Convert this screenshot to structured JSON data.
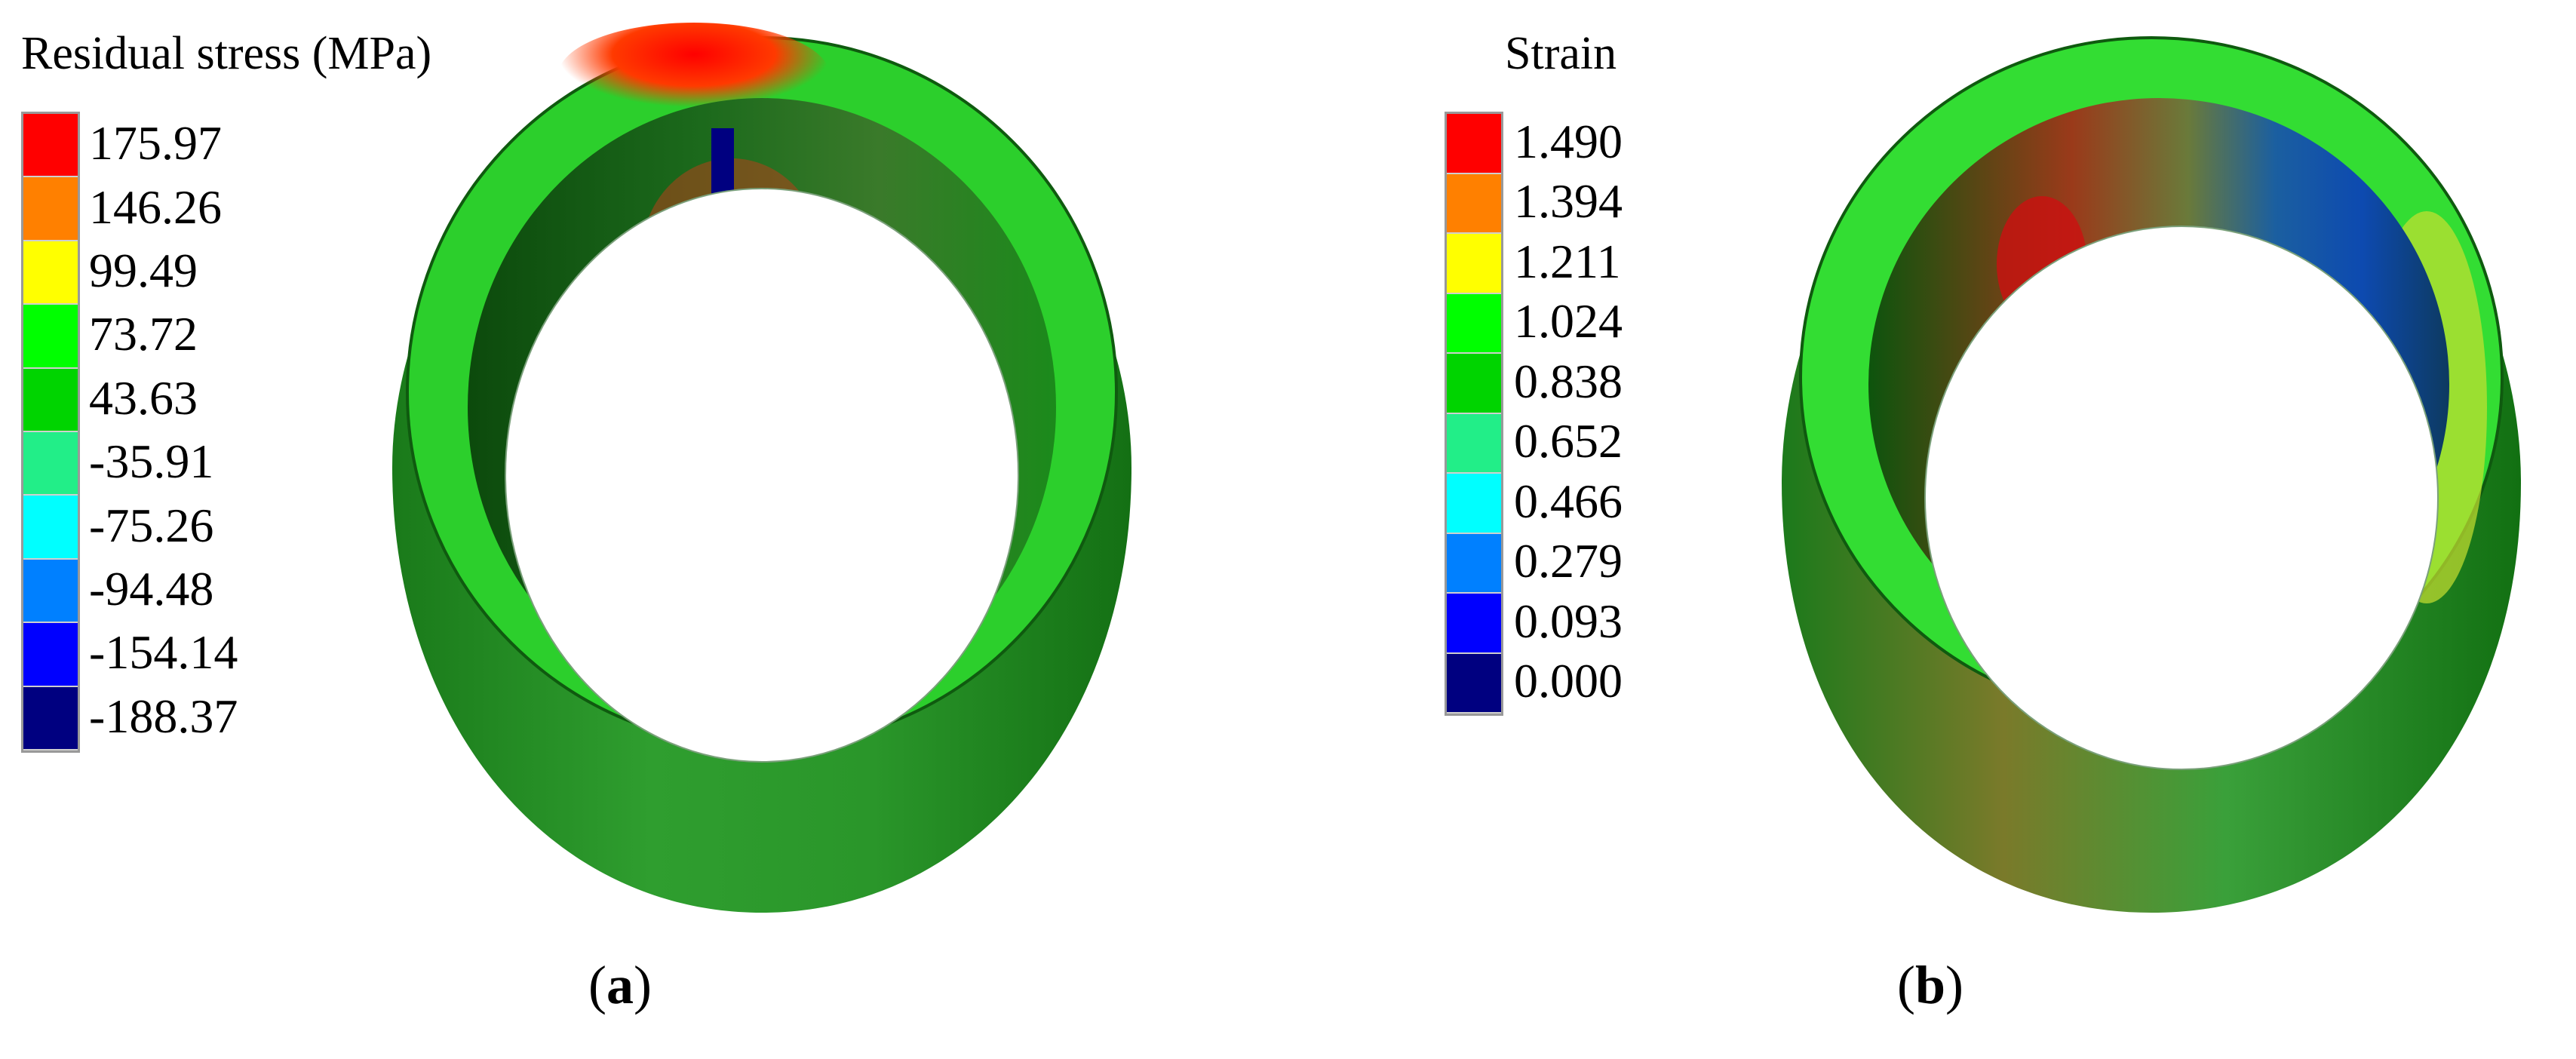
{
  "panel_a": {
    "legend_title": "Residual stress (MPa)",
    "legend_values": [
      "175.97",
      "146.26",
      "99.49",
      "73.72",
      "43.63",
      "-35.91",
      "-75.26",
      "-94.48",
      "-154.14",
      "-188.37"
    ],
    "legend_colors": [
      "#ff0000",
      "#ff8000",
      "#ffff00",
      "#00ff00",
      "#00d400",
      "#22ee88",
      "#00ffff",
      "#0080ff",
      "#0000ff",
      "#000080"
    ],
    "caption_open": "(",
    "caption_letter": "a",
    "caption_close": ")"
  },
  "panel_b": {
    "legend_title": "Strain",
    "legend_values": [
      "1.490",
      "1.394",
      "1.211",
      "1.024",
      "0.838",
      "0.652",
      "0.466",
      "0.279",
      "0.093",
      "0.000"
    ],
    "legend_colors": [
      "#ff0000",
      "#ff8000",
      "#ffff00",
      "#00ff00",
      "#00d400",
      "#22ee88",
      "#00ffff",
      "#0080ff",
      "#0000ff",
      "#000080"
    ],
    "caption_open": "(",
    "caption_letter": "b",
    "caption_close": ")"
  }
}
